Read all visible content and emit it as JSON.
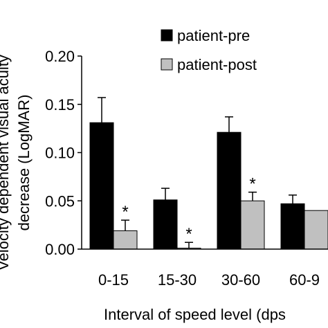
{
  "chart_data": {
    "type": "bar",
    "title": "",
    "xlabel": "Interval of speed level (dps",
    "ylabel_line1": "Velocity dependent visual acuity",
    "ylabel_line2": "decrease (LogMAR)",
    "categories": [
      "0-15",
      "15-30",
      "30-60",
      "60-9"
    ],
    "ylim": [
      0,
      0.2
    ],
    "yticks": [
      "0.00",
      "0.05",
      "0.10",
      "0.15",
      "0.20"
    ],
    "ytick_values": [
      0,
      0.05,
      0.1,
      0.15,
      0.2
    ],
    "series": [
      {
        "name": "patient-pre",
        "color": "#000000",
        "values": [
          0.131,
          0.051,
          0.121,
          0.047
        ],
        "errors": [
          0.026,
          0.012,
          0.016,
          0.009
        ]
      },
      {
        "name": "patient-post",
        "color": "#c0c0c0",
        "values": [
          0.019,
          0.001,
          0.05,
          0.04
        ],
        "errors": [
          0.011,
          0.006,
          0.009,
          0.0
        ]
      }
    ],
    "annotations": [
      {
        "text": "*",
        "category_index": 0,
        "series_index": 1
      },
      {
        "text": "*",
        "category_index": 1,
        "series_index": 1
      },
      {
        "text": "*",
        "category_index": 2,
        "series_index": 1
      }
    ],
    "legend_position": "top-right",
    "grid": false
  }
}
